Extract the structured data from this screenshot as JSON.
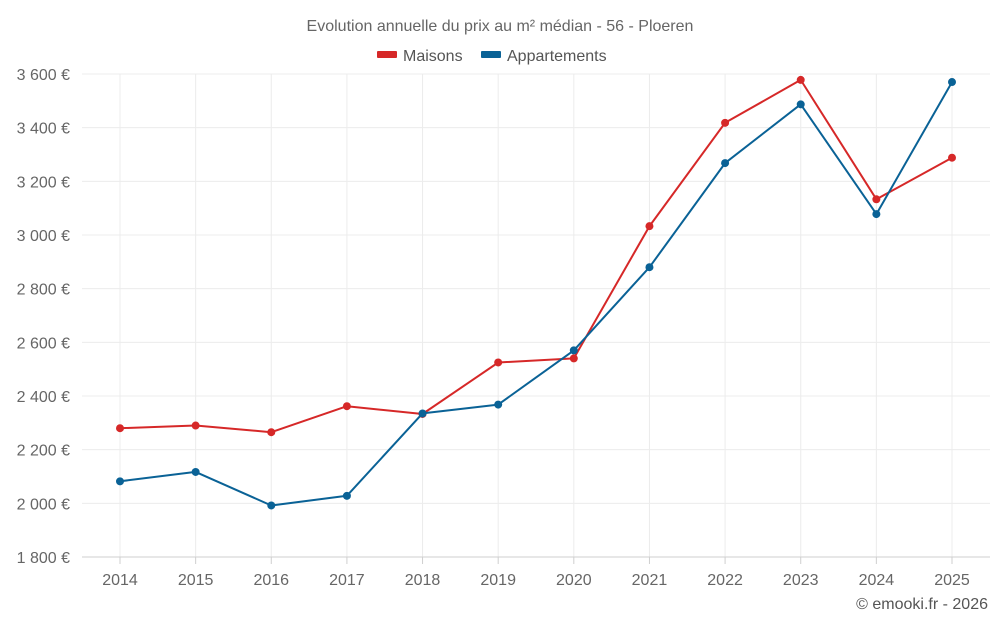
{
  "chart_data": {
    "type": "line",
    "title": "Evolution annuelle du prix au m² médian - 56 - Ploeren",
    "categories": [
      "2014",
      "2015",
      "2016",
      "2017",
      "2018",
      "2019",
      "2020",
      "2021",
      "2022",
      "2023",
      "2024",
      "2025"
    ],
    "series": [
      {
        "name": "Maisons",
        "color": "#d62828",
        "values": [
          2280,
          2290,
          2265,
          2362,
          2333,
          2525,
          2540,
          3033,
          3418,
          3578,
          3133,
          3288
        ]
      },
      {
        "name": "Appartements",
        "color": "#0a6296",
        "values": [
          2082,
          2117,
          1992,
          2028,
          2335,
          2368,
          2570,
          2880,
          3268,
          3487,
          3078,
          3570
        ]
      }
    ],
    "ylim": [
      1800,
      3600
    ],
    "yticks": [
      1800,
      2000,
      2200,
      2400,
      2600,
      2800,
      3000,
      3200,
      3400,
      3600
    ],
    "ytick_labels": [
      "1 800 €",
      "2 000 €",
      "2 200 €",
      "2 400 €",
      "2 600 €",
      "2 800 €",
      "3 000 €",
      "3 200 €",
      "3 400 €",
      "3 600 €"
    ],
    "xlabel": "",
    "ylabel": "",
    "grid": true,
    "legend_position": "top-center"
  },
  "credit": "© emooki.fr - 2026"
}
